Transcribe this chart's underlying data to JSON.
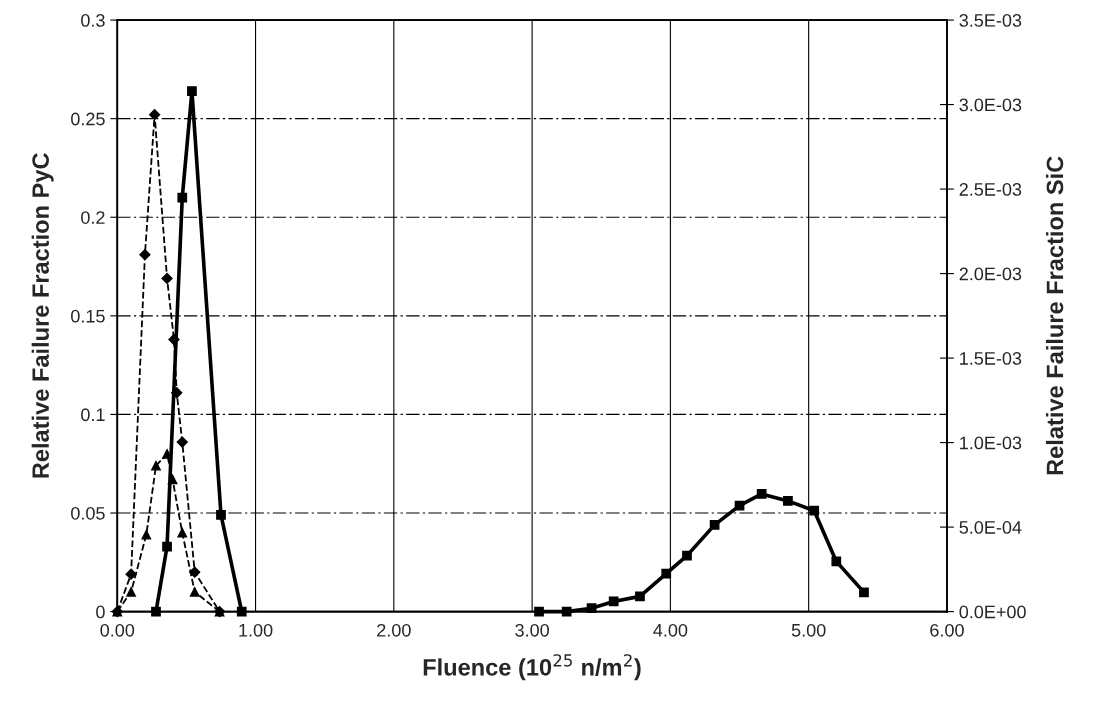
{
  "chart_data": {
    "type": "line",
    "xlabel": "Fluence (10$^{25}$ n/m$^{2}$)",
    "ylabel": "Relative Failure Fraction PyC",
    "y2label": "Relative Failure Fraction SiC",
    "xlim": [
      0,
      6
    ],
    "xticks": [
      {
        "value": 0,
        "label": "0.00"
      },
      {
        "value": 1,
        "label": "1.00"
      },
      {
        "value": 2,
        "label": "2.00"
      },
      {
        "value": 3,
        "label": "3.00"
      },
      {
        "value": 4,
        "label": "4.00"
      },
      {
        "value": 5,
        "label": "5.00"
      },
      {
        "value": 6,
        "label": "6.00"
      }
    ],
    "ylim": [
      0,
      0.3
    ],
    "yticks": [
      0,
      0.05,
      0.1,
      0.15,
      0.2,
      0.25,
      0.3
    ],
    "y2lim": [
      0,
      0.0035
    ],
    "y2ticks": [
      {
        "value": 0,
        "label": "0.0E+00"
      },
      {
        "value": 0.0005,
        "label": "5.0E-04"
      },
      {
        "value": 0.001,
        "label": "1.0E-03"
      },
      {
        "value": 0.0015,
        "label": "1.5E-03"
      },
      {
        "value": 0.002,
        "label": "2.0E-03"
      },
      {
        "value": 0.0025,
        "label": "2.5E-03"
      },
      {
        "value": 0.003,
        "label": "3.0E-03"
      },
      {
        "value": 0.0035,
        "label": "3.5E-03"
      }
    ],
    "grid": true,
    "series": [
      {
        "color": "#000000",
        "marker": "diamond",
        "line_style": "dashed",
        "x": [
          0,
          0.1,
          0.2,
          0.27,
          0.36,
          0.41,
          0.43,
          0.47,
          0.56,
          0.74
        ],
        "values": [
          0,
          0.019,
          0.181,
          0.252,
          0.169,
          0.138,
          0.111,
          0.086,
          0.02,
          0
        ]
      },
      {
        "color": "#000000",
        "marker": "triangle",
        "line_style": "dashed",
        "x": [
          0,
          0.1,
          0.21,
          0.28,
          0.36,
          0.4,
          0.47,
          0.56,
          0.74
        ],
        "values": [
          0,
          0.01,
          0.039,
          0.074,
          0.08,
          0.067,
          0.04,
          0.01,
          0
        ]
      },
      {
        "color": "#000000",
        "marker": "square",
        "line_style": "solid",
        "x": [
          0.28,
          0.36,
          0.47,
          0.54,
          0.75,
          0.9
        ],
        "values": [
          0,
          0.033,
          0.21,
          0.264,
          0.049,
          0
        ]
      },
      {
        "color": "#000000",
        "marker": "square",
        "line_style": "solid",
        "axis": "y2",
        "x": [
          3.05,
          3.25,
          3.43,
          3.59,
          3.78,
          3.97,
          4.12,
          4.32,
          4.5,
          4.66,
          4.85,
          5.04,
          5.2,
          5.4
        ],
        "values": [
          0,
          0,
          2e-05,
          6e-05,
          9e-05,
          0.000225,
          0.000331,
          0.000513,
          0.000627,
          0.000696,
          0.000655,
          0.000597,
          0.000297,
          0.000114
        ]
      }
    ]
  }
}
